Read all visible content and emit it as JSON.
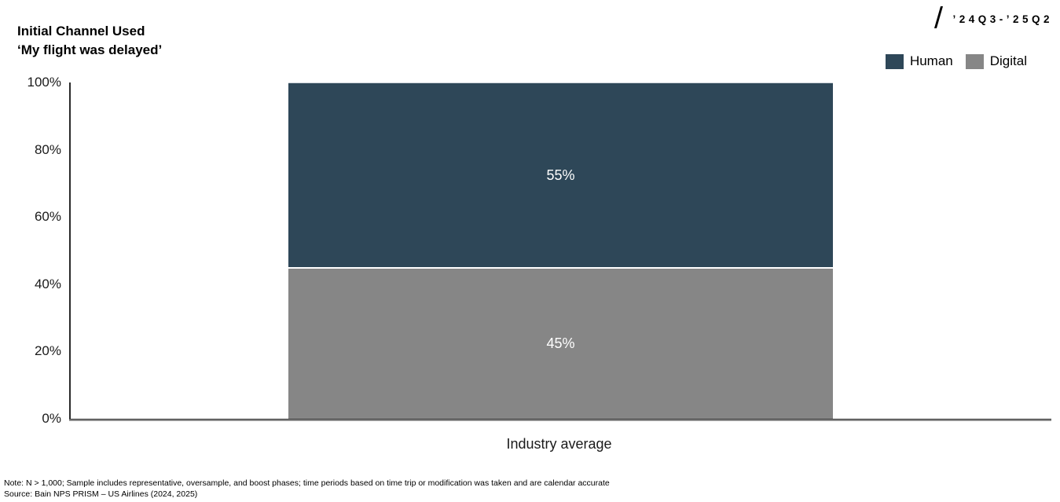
{
  "title": {
    "line1": "Initial Channel Used",
    "line2": "‘My flight was delayed’"
  },
  "period_label": "’24Q3-’25Q2",
  "legend": [
    {
      "label": "Human",
      "color": "#2e4758"
    },
    {
      "label": "Digital",
      "color": "#868686"
    }
  ],
  "chart_data": {
    "type": "bar",
    "stacked": true,
    "title": "Initial Channel Used ‘My flight was delayed’",
    "categories": [
      "Industry average"
    ],
    "series": [
      {
        "name": "Human",
        "values": [
          55
        ],
        "color": "#2e4758"
      },
      {
        "name": "Digital",
        "values": [
          45
        ],
        "color": "#868686"
      }
    ],
    "value_labels": [
      "55%",
      "45%"
    ],
    "yticks": [
      "100%",
      "80%",
      "60%",
      "40%",
      "20%",
      "0%"
    ],
    "ylim": [
      0,
      100
    ],
    "ylabel": "",
    "xlabel": "",
    "grid": false,
    "legend_position": "top-right"
  },
  "footer": {
    "note": "Note: N > 1,000; Sample includes representative, oversample, and boost phases; time periods based on time trip or modification was taken and are calendar accurate",
    "source": "Source: Bain NPS PRISM – US Airlines (2024, 2025)"
  }
}
